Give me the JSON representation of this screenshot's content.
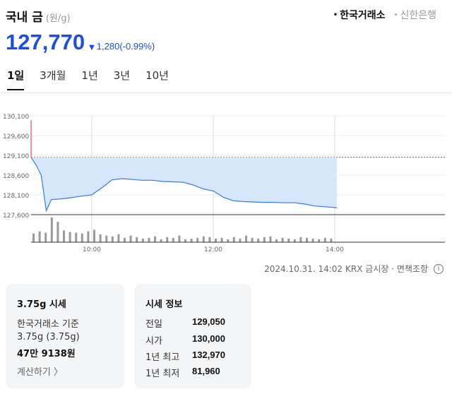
{
  "header": {
    "title": "국내 금",
    "unit": "(원/g)",
    "sources": [
      {
        "label": "한국거래소",
        "active": true
      },
      {
        "label": "신한은행",
        "active": false
      }
    ]
  },
  "price": {
    "value": "127,770",
    "change": "1,280",
    "change_pct": "(-0.99%)",
    "direction": "down",
    "color": "#1e4fd6"
  },
  "period_tabs": [
    "1일",
    "3개월",
    "1년",
    "3년",
    "10년"
  ],
  "active_period": "1일",
  "chart_data": {
    "type": "area",
    "title": "",
    "y_ticks": [
      "130,100",
      "129,600",
      "129,100",
      "128,600",
      "128,100",
      "127,600"
    ],
    "ylim": [
      127600,
      130100
    ],
    "x_ticks": [
      "10:00",
      "12:00",
      "14:00"
    ],
    "reference_line": 129050,
    "series": [
      {
        "x": [
          "09:00",
          "09:05",
          "09:10",
          "09:15",
          "09:20",
          "09:25",
          "09:30",
          "09:40",
          "09:50",
          "10:00",
          "10:10",
          "10:20",
          "10:30",
          "10:40",
          "10:50",
          "11:00",
          "11:10",
          "11:20",
          "11:30",
          "11:40",
          "11:50",
          "12:00",
          "12:10",
          "12:20",
          "12:30",
          "12:40",
          "12:50",
          "13:00",
          "13:10",
          "13:20",
          "13:30",
          "13:40",
          "13:50",
          "14:00",
          "14:02"
        ],
        "values": [
          129050,
          128850,
          128600,
          127700,
          127980,
          127990,
          128000,
          128030,
          128070,
          128100,
          128280,
          128480,
          128510,
          128490,
          128470,
          128470,
          128440,
          128430,
          128420,
          128350,
          128250,
          128200,
          128040,
          127950,
          127930,
          127920,
          127910,
          127910,
          127900,
          127900,
          127870,
          127820,
          127800,
          127780,
          127770
        ]
      }
    ],
    "volume": [
      1.2,
      1.5,
      1.3,
      3.4,
      2.8,
      1.6,
      1.4,
      1.3,
      1.2,
      1.5,
      1.7,
      1.1,
      0.9,
      0.8,
      1.1,
      0.6,
      0.9,
      0.7,
      0.5,
      0.6,
      0.8,
      0.4,
      0.7,
      0.6,
      0.9,
      0.4,
      0.5,
      0.6,
      0.8,
      0.7,
      0.5,
      0.6,
      0.4,
      0.7,
      0.5,
      0.9,
      0.6,
      0.5,
      0.7,
      0.8,
      0.4,
      0.6,
      0.5,
      0.4,
      0.7,
      0.6,
      0.5,
      0.4,
      0.6,
      0.5
    ],
    "colors": {
      "pre": "#e84c4c",
      "line": "#3a7bd5",
      "fill": "#d6e7fb",
      "volume": "#9a9a9a"
    }
  },
  "chart_footer": {
    "timestamp": "2024.10.31. 14:02",
    "note": "KRX 금시장 · 면책조항"
  },
  "card_market": {
    "title": "3.75g 시세",
    "basis": "한국거래소 기준",
    "weight": "3.75g (3.75g)",
    "amount": "47만 9138원",
    "link": "계산하기 〉"
  },
  "card_info": {
    "title": "시세 정보",
    "rows": [
      {
        "label": "전일",
        "value": "129,050"
      },
      {
        "label": "시가",
        "value": "130,000"
      },
      {
        "label": "1년 최고",
        "value": "132,970"
      },
      {
        "label": "1년 최저",
        "value": "81,960"
      }
    ]
  }
}
